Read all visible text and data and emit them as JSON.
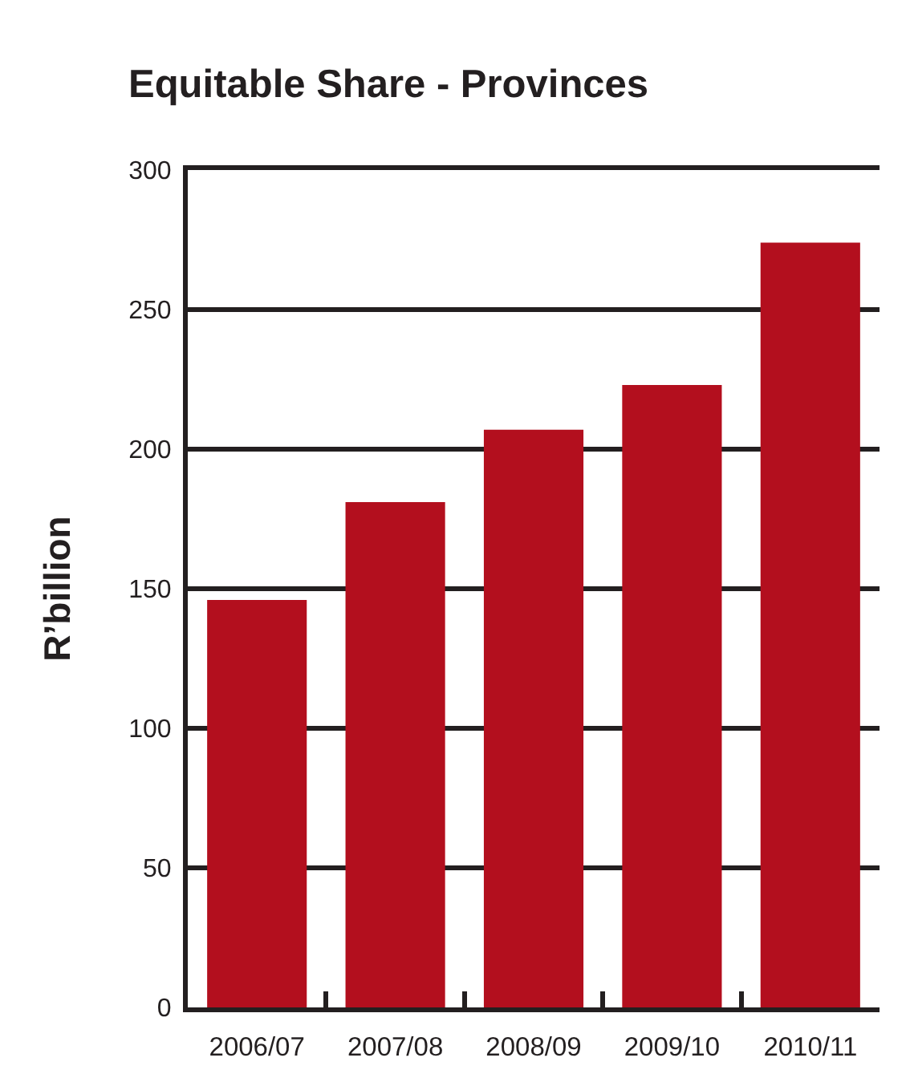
{
  "chart_data": {
    "type": "bar",
    "title": "Equitable Share - Provinces",
    "ylabel": "R’billion",
    "categories": [
      "2006/07",
      "2007/08",
      "2008/09",
      "2009/10",
      "2010/11"
    ],
    "values": [
      146,
      181,
      207,
      223,
      274
    ],
    "color": "#b30f1e",
    "ylim": [
      0,
      300
    ],
    "yticks": [
      0,
      50,
      100,
      150,
      200,
      250,
      300
    ],
    "grid": "y"
  }
}
